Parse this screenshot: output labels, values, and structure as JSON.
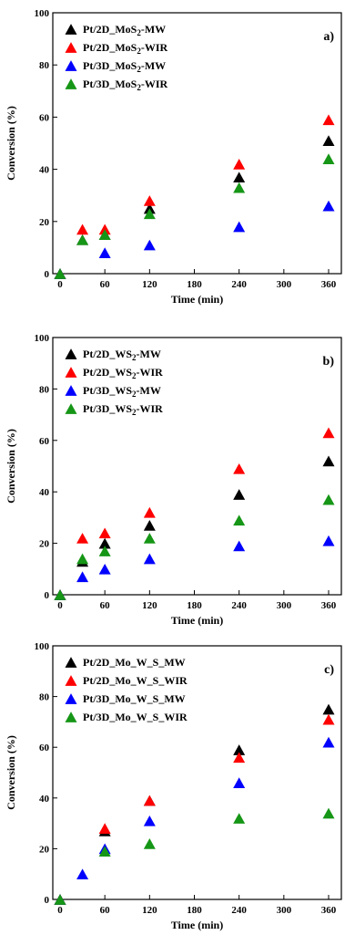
{
  "chart_data": [
    {
      "type": "scatter",
      "panel_label": "a)",
      "xlabel": "Time (min)",
      "ylabel": "Conversion (%)",
      "xlim": [
        0,
        360
      ],
      "ylim": [
        0,
        100
      ],
      "xticks": [
        0,
        60,
        120,
        180,
        240,
        300,
        360
      ],
      "yticks": [
        0,
        20,
        40,
        60,
        80,
        100
      ],
      "legend_position": "top-left",
      "series": [
        {
          "name": "Pt/2D_MoS2-MW",
          "color": "#000000",
          "points": [
            [
              0,
              0
            ],
            [
              30,
              13
            ],
            [
              60,
              15
            ],
            [
              120,
              25
            ],
            [
              240,
              37
            ],
            [
              360,
              51
            ]
          ]
        },
        {
          "name": "Pt/2D_MoS2-WIR",
          "color": "#ff0000",
          "points": [
            [
              0,
              0
            ],
            [
              30,
              17
            ],
            [
              60,
              17
            ],
            [
              120,
              28
            ],
            [
              240,
              42
            ],
            [
              360,
              59
            ]
          ]
        },
        {
          "name": "Pt/3D_MoS2-MW",
          "color": "#0000ff",
          "points": [
            [
              0,
              0
            ],
            [
              60,
              8
            ],
            [
              120,
              11
            ],
            [
              240,
              18
            ],
            [
              360,
              26
            ]
          ]
        },
        {
          "name": "Pt/3D_MoS2-WIR",
          "color": "#169616",
          "points": [
            [
              0,
              0
            ],
            [
              30,
              13
            ],
            [
              60,
              15
            ],
            [
              120,
              23
            ],
            [
              240,
              33
            ],
            [
              360,
              44
            ]
          ]
        }
      ]
    },
    {
      "type": "scatter",
      "panel_label": "b)",
      "xlabel": "Time (min)",
      "ylabel": "Conversion (%)",
      "xlim": [
        0,
        360
      ],
      "ylim": [
        0,
        100
      ],
      "xticks": [
        0,
        60,
        120,
        180,
        240,
        300,
        360
      ],
      "yticks": [
        0,
        20,
        40,
        60,
        80,
        100
      ],
      "legend_position": "top-left",
      "series": [
        {
          "name": "Pt/2D_WS2-MW",
          "color": "#000000",
          "points": [
            [
              0,
              0
            ],
            [
              30,
              13
            ],
            [
              60,
              20
            ],
            [
              120,
              27
            ],
            [
              240,
              39
            ],
            [
              360,
              52
            ]
          ]
        },
        {
          "name": "Pt/2D_WS2-WIR",
          "color": "#ff0000",
          "points": [
            [
              0,
              0
            ],
            [
              30,
              22
            ],
            [
              60,
              24
            ],
            [
              120,
              32
            ],
            [
              240,
              49
            ],
            [
              360,
              63
            ]
          ]
        },
        {
          "name": "Pt/3D_WS2-MW",
          "color": "#0000ff",
          "points": [
            [
              0,
              0
            ],
            [
              30,
              7
            ],
            [
              60,
              10
            ],
            [
              120,
              14
            ],
            [
              240,
              19
            ],
            [
              360,
              21
            ]
          ]
        },
        {
          "name": "Pt/3D_WS2-WIR",
          "color": "#169616",
          "points": [
            [
              0,
              0
            ],
            [
              30,
              14
            ],
            [
              60,
              17
            ],
            [
              120,
              22
            ],
            [
              240,
              29
            ],
            [
              360,
              37
            ]
          ]
        }
      ]
    },
    {
      "type": "scatter",
      "panel_label": "c)",
      "xlabel": "Time (min)",
      "ylabel": "Conversion (%)",
      "xlim": [
        0,
        360
      ],
      "ylim": [
        0,
        100
      ],
      "xticks": [
        0,
        60,
        120,
        180,
        240,
        300,
        360
      ],
      "yticks": [
        0,
        20,
        40,
        60,
        80,
        100
      ],
      "legend_position": "top-left",
      "series": [
        {
          "name": "Pt/2D_Mo_W_S_MW",
          "color": "#000000",
          "points": [
            [
              0,
              0
            ],
            [
              60,
              27
            ],
            [
              120,
              39
            ],
            [
              240,
              59
            ],
            [
              360,
              75
            ]
          ]
        },
        {
          "name": "Pt/2D_Mo_W_S_WIR",
          "color": "#ff0000",
          "points": [
            [
              0,
              0
            ],
            [
              60,
              28
            ],
            [
              120,
              39
            ],
            [
              240,
              56
            ],
            [
              360,
              71
            ]
          ]
        },
        {
          "name": "Pt/3D_Mo_W_S_MW",
          "color": "#0000ff",
          "points": [
            [
              0,
              0
            ],
            [
              30,
              10
            ],
            [
              60,
              20
            ],
            [
              120,
              31
            ],
            [
              240,
              46
            ],
            [
              360,
              62
            ]
          ]
        },
        {
          "name": "Pt/3D_Mo_W_S_WIR",
          "color": "#169616",
          "points": [
            [
              0,
              0
            ],
            [
              60,
              19
            ],
            [
              120,
              22
            ],
            [
              240,
              32
            ],
            [
              360,
              34
            ]
          ]
        }
      ]
    }
  ]
}
